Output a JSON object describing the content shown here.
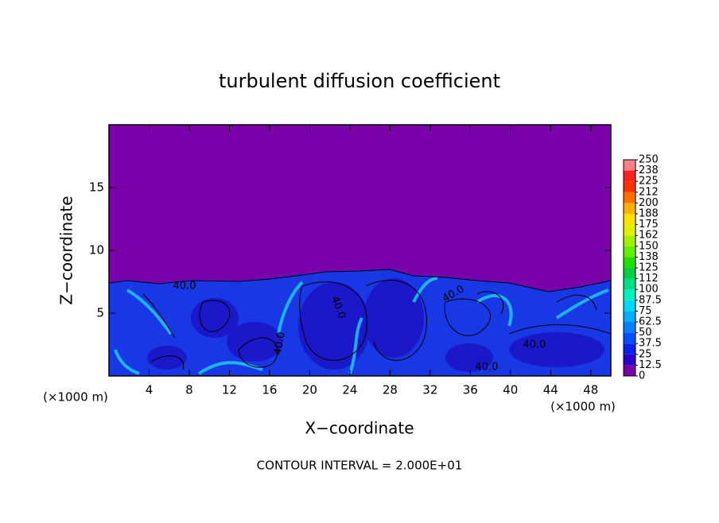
{
  "chart_data": {
    "type": "contour",
    "title": "turbulent diffusion coefficient",
    "x_label": "X−coordinate",
    "y_label": "Z−coordinate",
    "x_unit_labels": [
      "(×1000 m)",
      "(×1000 m)"
    ],
    "footer": "CONTOUR INTERVAL = 2.000E+01",
    "xlim": [
      0,
      50
    ],
    "ylim": [
      0,
      20
    ],
    "xticks": [
      4,
      8,
      12,
      16,
      20,
      24,
      28,
      32,
      36,
      40,
      44,
      48
    ],
    "yticks": [
      5,
      10,
      15
    ],
    "colorbar": {
      "lim": [
        0,
        250
      ],
      "ticks": [
        0,
        12.5,
        25,
        37.5,
        50,
        62.5,
        75,
        87.5,
        100,
        {
          "value": 112.5,
          "label": "112"
        },
        125,
        {
          "value": 137.5,
          "label": "138"
        },
        150,
        {
          "value": 162.5,
          "label": "162"
        },
        175,
        {
          "value": 187.5,
          "label": "188"
        },
        200,
        {
          "value": 212.5,
          "label": "212"
        },
        225,
        {
          "value": 237.5,
          "label": "238"
        },
        250
      ],
      "colors": [
        "#7a00aa",
        "#2a00d0",
        "#0a20ee",
        "#0050ff",
        "#0080ff",
        "#00b0ff",
        "#00d8f8",
        "#00f0c0",
        "#00e080",
        "#00d040",
        "#20e000",
        "#60f000",
        "#a0f000",
        "#e0f000",
        "#ffe000",
        "#ffb000",
        "#ff7000",
        "#ff3000",
        "#ff2020",
        "#ff8080"
      ]
    },
    "contour_labels": [
      "40.0",
      "40.0",
      "40.0",
      "40.0",
      "40.0",
      "40.0"
    ]
  }
}
